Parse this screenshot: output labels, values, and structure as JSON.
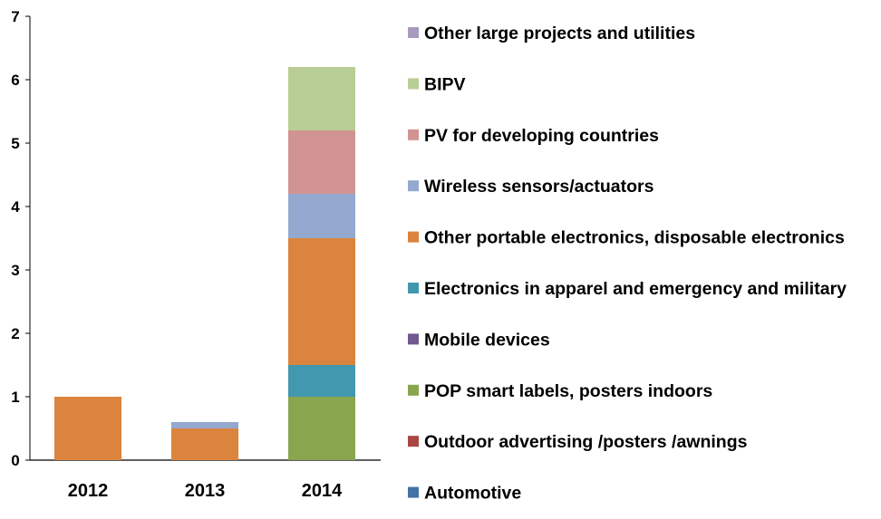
{
  "chart_data": {
    "type": "bar",
    "stacked": true,
    "categories": [
      "2012",
      "2013",
      "2014"
    ],
    "ylim": [
      0,
      7
    ],
    "yticks": [
      "0",
      "1",
      "2",
      "3",
      "4",
      "5",
      "6",
      "7"
    ],
    "grid": false,
    "legend_placement": "right",
    "series": [
      {
        "name": "Automotive",
        "color": "#4572A7",
        "values": [
          0,
          0,
          0
        ]
      },
      {
        "name": "Outdoor advertising /posters /awnings",
        "color": "#AA4643",
        "values": [
          0,
          0,
          0
        ]
      },
      {
        "name": "POP smart labels, posters indoors",
        "color": "#89A54E",
        "values": [
          0,
          0,
          1
        ]
      },
      {
        "name": "Mobile devices",
        "color": "#71588F",
        "values": [
          0,
          0,
          0
        ]
      },
      {
        "name": "Electronics in apparel and emergency and military",
        "color": "#4198AF",
        "values": [
          0,
          0,
          0.5
        ]
      },
      {
        "name": "Other portable electronics, disposable electronics",
        "color": "#DB843D",
        "values": [
          1,
          0.5,
          2
        ]
      },
      {
        "name": "Wireless sensors/actuators",
        "color": "#93A9CF",
        "values": [
          0,
          0.1,
          0.7
        ]
      },
      {
        "name": "PV for developing countries",
        "color": "#D19392",
        "values": [
          0,
          0,
          1
        ]
      },
      {
        "name": "BIPV",
        "color": "#B9CD96",
        "values": [
          0,
          0,
          1
        ]
      },
      {
        "name": "Other large projects and utilities",
        "color": "#A99BBD",
        "values": [
          0,
          0,
          0
        ]
      }
    ]
  }
}
